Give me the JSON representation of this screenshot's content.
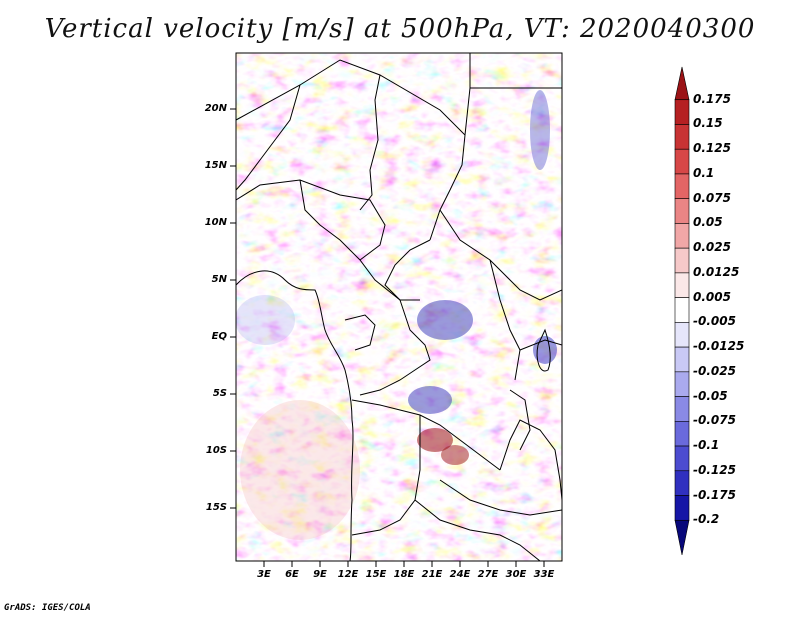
{
  "title": "Vertical velocity [m/s] at 500hPa, VT: 2020040300",
  "credit": "GrADS: IGES/COLA",
  "map": {
    "lat_labels": [
      "20N",
      "15N",
      "10N",
      "5N",
      "EQ",
      "5S",
      "10S",
      "15S"
    ],
    "lon_labels": [
      "3E",
      "6E",
      "9E",
      "12E",
      "15E",
      "18E",
      "21E",
      "24E",
      "27E",
      "30E",
      "33E"
    ]
  },
  "colorbar": {
    "labels": [
      "0.175",
      "0.15",
      "0.125",
      "0.1",
      "0.075",
      "0.05",
      "0.025",
      "0.0125",
      "0.005",
      "-0.005",
      "-0.0125",
      "-0.025",
      "-0.05",
      "-0.075",
      "-0.1",
      "-0.125",
      "-0.175",
      "-0.2"
    ],
    "colors": [
      "#9b1316",
      "#b52022",
      "#c83334",
      "#d74747",
      "#e36565",
      "#ea8585",
      "#f1a7a7",
      "#f6c9c9",
      "#fbe8e8",
      "#ffffff",
      "#e6e6fb",
      "#c9c9f5",
      "#aaaaee",
      "#8a8ae5",
      "#6a6adc",
      "#4c4cd0",
      "#3030c0",
      "#1616a6",
      "#08087a"
    ]
  }
}
